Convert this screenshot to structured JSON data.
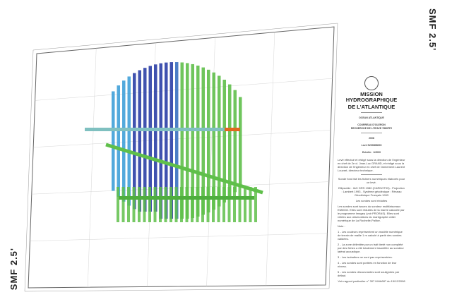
{
  "scale_label": "SMF 2.5'",
  "cartouche": {
    "organization": "MISSION HYDROGRAPHIQUE",
    "organization2": "DE L'ATLANTIQUE",
    "region": "OCEAN ATLANTIQUE",
    "subject1": "COURREAU D'OLERON",
    "subject2": "RECHERCHE DE L'EPAVE 7880FF2",
    "year": "2008",
    "survey": "Levé S200808000",
    "scale": "Echelle : 1/2000",
    "credits": "Levé effectué et rédigé sous la direction de l'ingénieur en chef de 2e cl. Jean-Luc GRAND, et rédigé sous la direction de l'ingénieur en chef de l'armement Laurent Louvart, directeur technique.",
    "source": "Sonde fond fait les fichiers numériques élaborés pour ce levé.",
    "geodesy": "Ellipsoïde : IAG GRS 1980 (CARNOT93) - Projection : Lambert 1993 - Système géodésique : Réseau Géodésique Français 1993",
    "datum_note": "Les sondes sont réduites",
    "body": "Les sondes sont issues du sondeur multifaisceaux EM3002. Elles sont réduites de la marée calculée par le programme Imagep (voir PRORAS). Elles sont reliées aux observations du marégraphe côtier numérique de La Rochelle-Pallice.",
    "notes_title": "Note :",
    "notes": [
      "1 - Les couleurs représentent un modèle numérique de terrain de maille 1 m calculé à partir des sondes validées.",
      "2 - La zone délimitée par un trait tireté non complété par des fiches a été totalement insonifiée au sondeur latéral acoustique.",
      "3 - Les isobathes ne sont pas représentées.",
      "4 - Les sondes sont portées en fonction de leur niveau.",
      "5 - Les sondes découvrantes sont soulignées par défaut."
    ],
    "report": "Voir rapport particulier n° 307 MHA/NP du 15/12/2008"
  },
  "colors": {
    "deep": "#2b3fa6",
    "mid": "#3fa0d8",
    "shallow": "#5fbf4a",
    "high": "#e0681e"
  }
}
